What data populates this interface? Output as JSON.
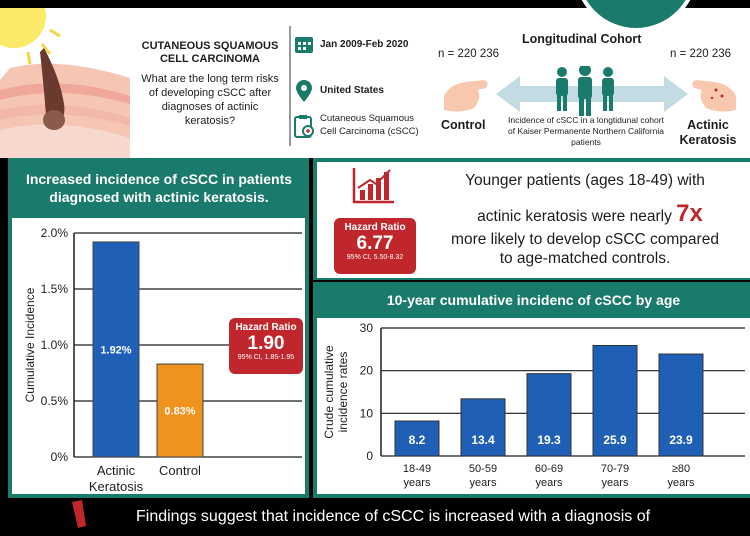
{
  "header": {
    "title": "CUTANEOUS SQUAMOUS CELL CARCINOMA",
    "question": "What are the long term risks of developing cSCC after diagnoses of actinic keratosis?",
    "date_range": "Jan 2009-Feb 2020",
    "location": "United States",
    "outcome": "Cutaneous Squamous Cell Carcinoma (cSCC)",
    "cohort_title": "Longitudinal Cohort",
    "n_control": "n = 220 236",
    "n_ak": "n = 220 236",
    "control_label": "Control",
    "ak_label": "Actinic Keratosis",
    "cohort_desc": "Incidence of cSCC in a longtidunal cohort of Kaiser Permanente Northern California patients"
  },
  "left_panel": {
    "heading": "Increased incidence of cSCC in patients diagnosed with actinic keratosis.",
    "hazard": {
      "label": "Hazard Ratio",
      "value": "1.90",
      "ci": "95% CI, 1.85-1.95"
    }
  },
  "right_top": {
    "text_a": "Younger patients (ages 18-49) with",
    "text_b": "actinic keratosis were nearly",
    "highlight": "7x",
    "text_c": "more likely to develop cSCC compared",
    "text_d": "to age-matched controls.",
    "hazard": {
      "label": "Hazard Ratio",
      "value": "6.77",
      "ci": "95% CI, 5.50-8.32"
    }
  },
  "right_bottom": {
    "heading": "10-year cumulative incidenc of cSCC by age"
  },
  "footer": {
    "text": "Findings suggest that incidence of cSCC is increased with a diagnosis of"
  },
  "colors": {
    "teal": "#1a7a6b",
    "blue": "#1f5fb5",
    "orange": "#f0921e",
    "red": "#c0272d",
    "highlight": "#c0272d"
  },
  "chart_data": [
    {
      "type": "bar",
      "categories": [
        "Actinic Keratosis",
        "Control"
      ],
      "category_lines": [
        [
          "Actinic",
          "Keratosis"
        ],
        [
          "Control"
        ]
      ],
      "values": [
        1.92,
        0.83
      ],
      "data_labels": [
        "1.92%",
        "0.83%"
      ],
      "bar_colors": [
        "#1f5fb5",
        "#f0921e"
      ],
      "ylabel": "Cumulative Incidence",
      "ylim": [
        0,
        2.0
      ],
      "yticks": [
        0,
        0.5,
        1.0,
        1.5,
        2.0
      ],
      "ytick_labels": [
        "0%",
        "0.5%",
        "1.0%",
        "1.5%",
        "2.0%"
      ],
      "grid": true
    },
    {
      "type": "bar",
      "categories": [
        "18-49 years",
        "50-59 years",
        "60-69 years",
        "70-79 years",
        "≥80 years"
      ],
      "category_lines": [
        [
          "18-49",
          "years"
        ],
        [
          "50-59",
          "years"
        ],
        [
          "60-69",
          "years"
        ],
        [
          "70-79",
          "years"
        ],
        [
          "≥80",
          "years"
        ]
      ],
      "values": [
        8.2,
        13.4,
        19.3,
        25.9,
        23.9
      ],
      "data_labels": [
        "8.2",
        "13.4",
        "19.3",
        "25.9",
        "23.9"
      ],
      "ylabel": "Crude cumulative incidence rates",
      "ylabel_lines": [
        "Crude cumulative",
        "incidence rates"
      ],
      "ylim": [
        0,
        30
      ],
      "yticks": [
        0,
        10,
        20,
        30
      ],
      "grid": true
    }
  ]
}
